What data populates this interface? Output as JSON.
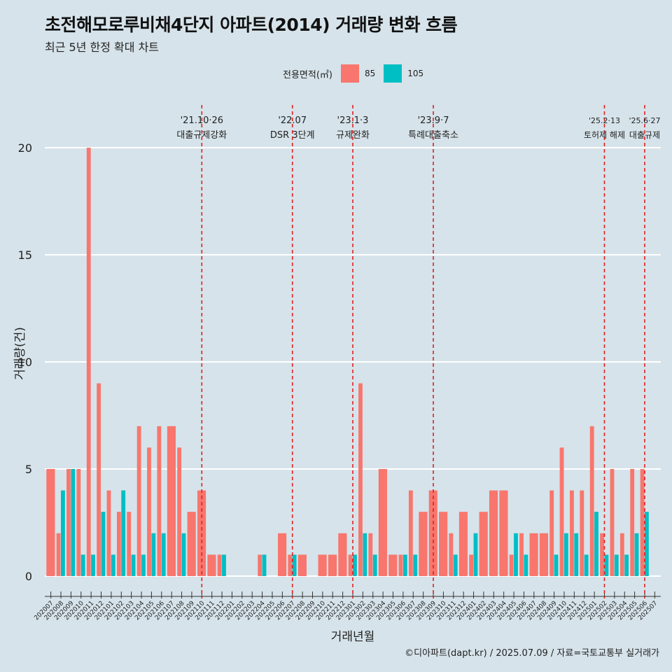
{
  "title": "초전해모로루비채4단지 아파트(2014) 거래량 변화 흐름",
  "subtitle": "최근 5년 한정 확대 차트",
  "legend": {
    "title": "전용면적(㎡)",
    "items": [
      {
        "label": "85",
        "color": "#F8766D"
      },
      {
        "label": "105",
        "color": "#00BFC4"
      }
    ]
  },
  "caption": "©디아파트(dapt.kr) / 2025.07.09 / 자료=국토교통부 실거래가",
  "chart_data": {
    "type": "bar",
    "title": "초전해모로루비채4단지 아파트(2014) 거래량 변화 흐름",
    "xlabel": "거래년월",
    "ylabel": "거래량(건)",
    "ylim": [
      0,
      21
    ],
    "yticks": [
      0,
      5,
      10,
      15,
      20
    ],
    "grid": "horizontal",
    "legend_position": "top",
    "categories": [
      "202007",
      "202008",
      "202009",
      "202010",
      "202011",
      "202012",
      "202101",
      "202102",
      "202103",
      "202104",
      "202105",
      "202106",
      "202107",
      "202108",
      "202109",
      "202110",
      "202111",
      "202112",
      "202201",
      "202202",
      "202203",
      "202204",
      "202205",
      "202206",
      "202207",
      "202208",
      "202209",
      "202210",
      "202211",
      "202212",
      "202301",
      "202302",
      "202303",
      "202304",
      "202305",
      "202306",
      "202307",
      "202308",
      "202309",
      "202310",
      "202311",
      "202312",
      "202401",
      "202402",
      "202403",
      "202404",
      "202405",
      "202406",
      "202407",
      "202408",
      "202409",
      "202410",
      "202411",
      "202412",
      "202501",
      "202502",
      "202503",
      "202504",
      "202505",
      "202506",
      "202507"
    ],
    "series": [
      {
        "name": "85",
        "color": "#F8766D",
        "values": [
          5,
          2,
          5,
          5,
          20,
          9,
          4,
          3,
          3,
          7,
          6,
          7,
          7,
          6,
          3,
          4,
          1,
          1,
          0,
          0,
          0,
          1,
          0,
          2,
          1,
          1,
          0,
          1,
          1,
          2,
          1,
          9,
          2,
          5,
          1,
          1,
          4,
          3,
          4,
          3,
          2,
          3,
          1,
          3,
          4,
          4,
          1,
          2,
          2,
          2,
          4,
          6,
          4,
          4,
          7,
          2,
          5,
          2,
          5,
          5,
          0
        ]
      },
      {
        "name": "105",
        "color": "#00BFC4",
        "values": [
          0,
          4,
          5,
          1,
          1,
          3,
          1,
          4,
          1,
          1,
          2,
          2,
          0,
          2,
          0,
          0,
          0,
          1,
          0,
          0,
          0,
          1,
          0,
          0,
          1,
          0,
          0,
          0,
          0,
          0,
          1,
          2,
          1,
          0,
          0,
          1,
          1,
          0,
          0,
          0,
          1,
          0,
          2,
          0,
          0,
          0,
          2,
          1,
          0,
          0,
          1,
          2,
          2,
          1,
          3,
          1,
          1,
          1,
          2,
          3,
          0
        ]
      }
    ],
    "events": [
      {
        "at": "202110",
        "date": "'21.10·26",
        "label": "대출규제강화"
      },
      {
        "at": "202207",
        "date": "'22.07",
        "label": "DSR 3단계"
      },
      {
        "at": "202301",
        "date": "'23.1·3",
        "label": "규제완화"
      },
      {
        "at": "202309",
        "date": "'23.9·7",
        "label": "특례대출축소"
      },
      {
        "at": "202502",
        "date": "'25.2·13",
        "label": "토허제 해제"
      },
      {
        "at": "202506",
        "date": "'25.6·27",
        "label": "대출규제"
      }
    ]
  }
}
